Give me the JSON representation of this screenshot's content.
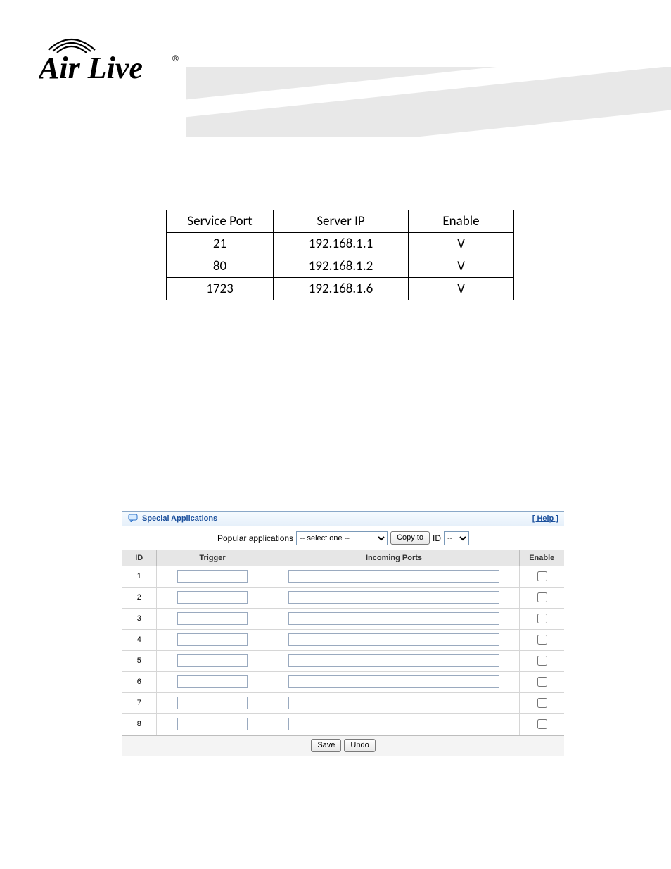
{
  "logo": {
    "brand": "Air Live"
  },
  "service_table": {
    "headers": [
      "Service Port",
      "Server IP",
      "Enable"
    ],
    "rows": [
      {
        "port": "21",
        "ip": "192.168.1.1",
        "enable": "V"
      },
      {
        "port": "80",
        "ip": "192.168.1.2",
        "enable": "V"
      },
      {
        "port": "1723",
        "ip": "192.168.1.6",
        "enable": "V"
      }
    ],
    "text_color": "#000000",
    "border_color": "#000000",
    "font_size": 19
  },
  "special_apps": {
    "title": "Special Applications",
    "help_label": "[ Help ]",
    "popular_label": "Popular applications",
    "select_placeholder": "-- select one --",
    "copy_to_label": "Copy to",
    "id_label": "ID",
    "id_placeholder": "--",
    "columns": {
      "id": "ID",
      "trigger": "Trigger",
      "incoming": "Incoming Ports",
      "enable": "Enable"
    },
    "rows": [
      {
        "id": "1",
        "trigger": "",
        "incoming": "",
        "enable": false
      },
      {
        "id": "2",
        "trigger": "",
        "incoming": "",
        "enable": false
      },
      {
        "id": "3",
        "trigger": "",
        "incoming": "",
        "enable": false
      },
      {
        "id": "4",
        "trigger": "",
        "incoming": "",
        "enable": false
      },
      {
        "id": "5",
        "trigger": "",
        "incoming": "",
        "enable": false
      },
      {
        "id": "6",
        "trigger": "",
        "incoming": "",
        "enable": false
      },
      {
        "id": "7",
        "trigger": "",
        "incoming": "",
        "enable": false
      },
      {
        "id": "8",
        "trigger": "",
        "incoming": "",
        "enable": false
      }
    ],
    "save_label": "Save",
    "undo_label": "Undo",
    "colors": {
      "header_text": "#1a4f9c",
      "header_bg_top": "#f6fbff",
      "header_bg_bottom": "#e6f0fa",
      "border": "#8aa8c8",
      "th_bg": "#e6e6e6",
      "row_border": "#d6d6d6",
      "input_border": "#9aaabf",
      "footer_bg": "#f4f4f4",
      "checkbox_accent": "#2a70c8"
    }
  }
}
